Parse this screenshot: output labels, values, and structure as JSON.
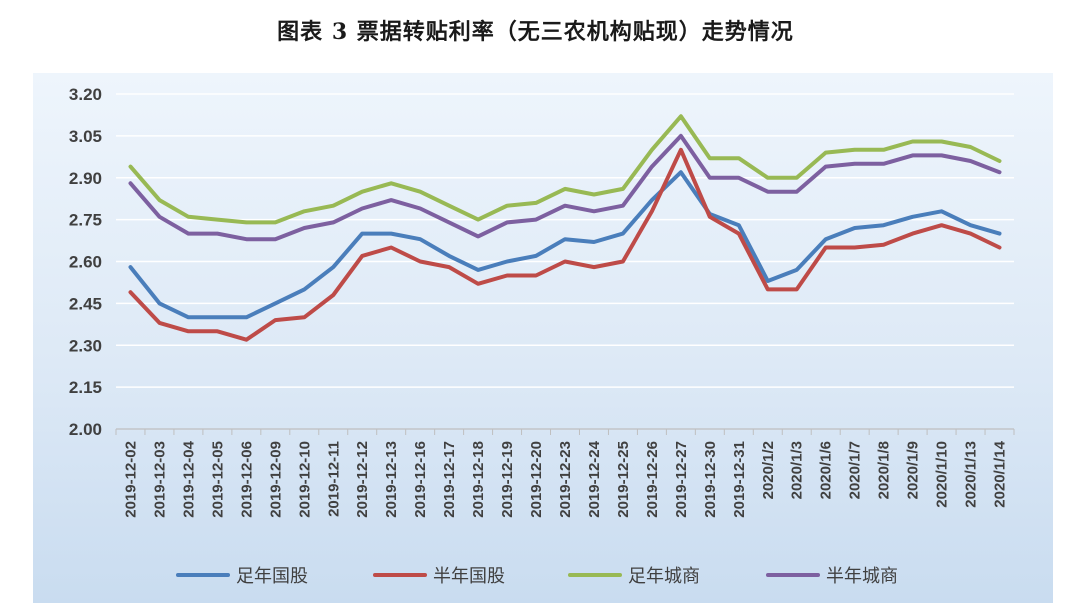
{
  "title": "图表 3  票据转贴利率（无三农机构贴现）走势情况",
  "chart_data": {
    "type": "line",
    "title": "图表 3  票据转贴利率（无三农机构贴现）走势情况",
    "categories": [
      "2019-12-02",
      "2019-12-03",
      "2019-12-04",
      "2019-12-05",
      "2019-12-06",
      "2019-12-09",
      "2019-12-10",
      "2019-12-11",
      "2019-12-12",
      "2019-12-13",
      "2019-12-16",
      "2019-12-17",
      "2019-12-18",
      "2019-12-19",
      "2019-12-20",
      "2019-12-23",
      "2019-12-24",
      "2019-12-25",
      "2019-12-26",
      "2019-12-27",
      "2019-12-30",
      "2019-12-31",
      "2020/1/2",
      "2020/1/3",
      "2020/1/6",
      "2020/1/7",
      "2020/1/8",
      "2020/1/9",
      "2020/1/10",
      "2020/1/13",
      "2020/1/14"
    ],
    "ylim": [
      2.0,
      3.2
    ],
    "yticks": [
      "2.00",
      "2.15",
      "2.30",
      "2.45",
      "2.60",
      "2.75",
      "2.90",
      "3.05",
      "3.20"
    ],
    "grid": true,
    "legend_position": "bottom",
    "series": [
      {
        "name": "足年国股",
        "color": "#4a7ebb",
        "values": [
          2.58,
          2.45,
          2.4,
          2.4,
          2.4,
          2.45,
          2.5,
          2.58,
          2.7,
          2.7,
          2.68,
          2.62,
          2.57,
          2.6,
          2.62,
          2.68,
          2.67,
          2.7,
          2.82,
          2.92,
          2.77,
          2.73,
          2.53,
          2.57,
          2.68,
          2.72,
          2.73,
          2.76,
          2.78,
          2.73,
          2.7
        ]
      },
      {
        "name": "半年国股",
        "color": "#be4b48",
        "values": [
          2.49,
          2.38,
          2.35,
          2.35,
          2.32,
          2.39,
          2.4,
          2.48,
          2.62,
          2.65,
          2.6,
          2.58,
          2.52,
          2.55,
          2.55,
          2.6,
          2.58,
          2.6,
          2.78,
          3.0,
          2.76,
          2.7,
          2.5,
          2.5,
          2.65,
          2.65,
          2.66,
          2.7,
          2.73,
          2.7,
          2.65
        ]
      },
      {
        "name": "足年城商",
        "color": "#98b954",
        "values": [
          2.94,
          2.82,
          2.76,
          2.75,
          2.74,
          2.74,
          2.78,
          2.8,
          2.85,
          2.88,
          2.85,
          2.8,
          2.75,
          2.8,
          2.81,
          2.86,
          2.84,
          2.86,
          3.0,
          3.12,
          2.97,
          2.97,
          2.9,
          2.9,
          2.99,
          3.0,
          3.0,
          3.03,
          3.03,
          3.01,
          2.96
        ]
      },
      {
        "name": "半年城商",
        "color": "#7d60a0",
        "values": [
          2.88,
          2.76,
          2.7,
          2.7,
          2.68,
          2.68,
          2.72,
          2.74,
          2.79,
          2.82,
          2.79,
          2.74,
          2.69,
          2.74,
          2.75,
          2.8,
          2.78,
          2.8,
          2.94,
          3.05,
          2.9,
          2.9,
          2.85,
          2.85,
          2.94,
          2.95,
          2.95,
          2.98,
          2.98,
          2.96,
          2.92
        ]
      }
    ]
  }
}
